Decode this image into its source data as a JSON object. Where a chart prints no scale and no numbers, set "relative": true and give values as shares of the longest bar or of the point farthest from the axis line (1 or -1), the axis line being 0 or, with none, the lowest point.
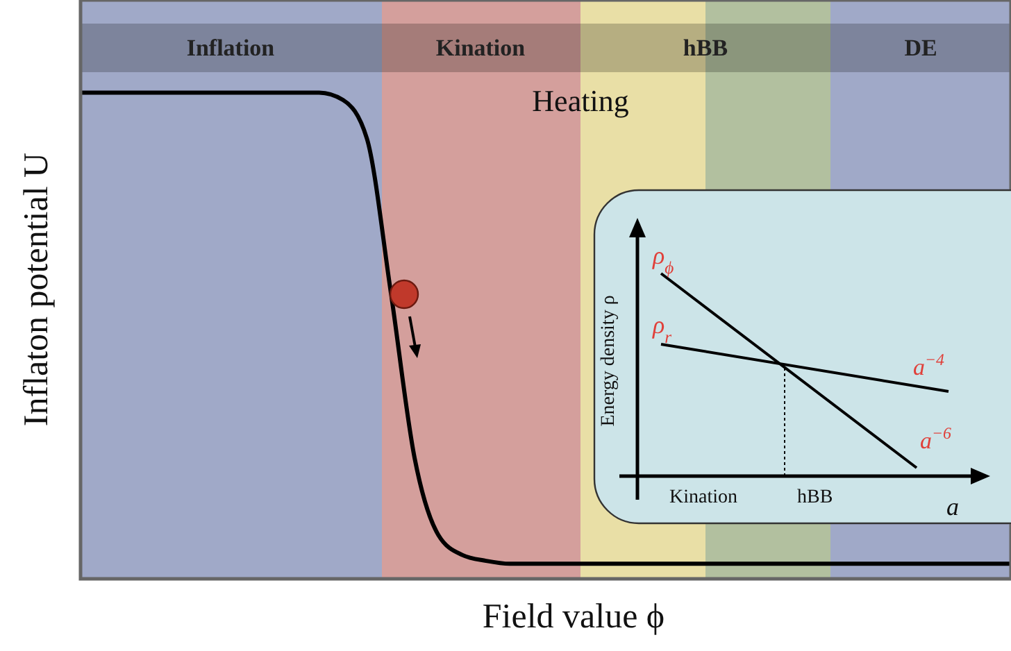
{
  "chart_data": [
    {
      "type": "line",
      "relative": true,
      "xlabel": "Field value ϕ",
      "ylabel": "Inflaton potential U",
      "categories": [
        null,
        null,
        null,
        null,
        null,
        null,
        null,
        null,
        null,
        null,
        null,
        null,
        null,
        null,
        null,
        null,
        null,
        null,
        null,
        null,
        null,
        null,
        null,
        null,
        null,
        null,
        null,
        null,
        null,
        null,
        null,
        null,
        null,
        null,
        null,
        null,
        null,
        null,
        null,
        null
      ],
      "series": [
        {
          "color": "#000000",
          "values": [
            1,
            1,
            1,
            1,
            1,
            1,
            1,
            1,
            1,
            1,
            1,
            0.985,
            0.906,
            0.591,
            0.249,
            0.09,
            0.049,
            0.037,
            0.031,
            0.031,
            0.031,
            0.031,
            0.031,
            0.031,
            0.031,
            0.031,
            0.031,
            0.031,
            0.031,
            0.031,
            0.031,
            0.031,
            0.031,
            0.031,
            0.031,
            0.031,
            0.031,
            0.031,
            0.031,
            0.031
          ]
        }
      ],
      "annotations": [
        "Inflation",
        "Kination",
        "hBB",
        "DE",
        "Heating"
      ]
    },
    {
      "type": "other",
      "xlabel": "a",
      "ylabel": "Energy density ρ",
      "annotations": [
        "ρ$_{ϕ}$",
        "ρ$_{r}$",
        "a$^{−4}$",
        "a$^{−6}$",
        "Kination",
        "hBB"
      ]
    }
  ]
}
